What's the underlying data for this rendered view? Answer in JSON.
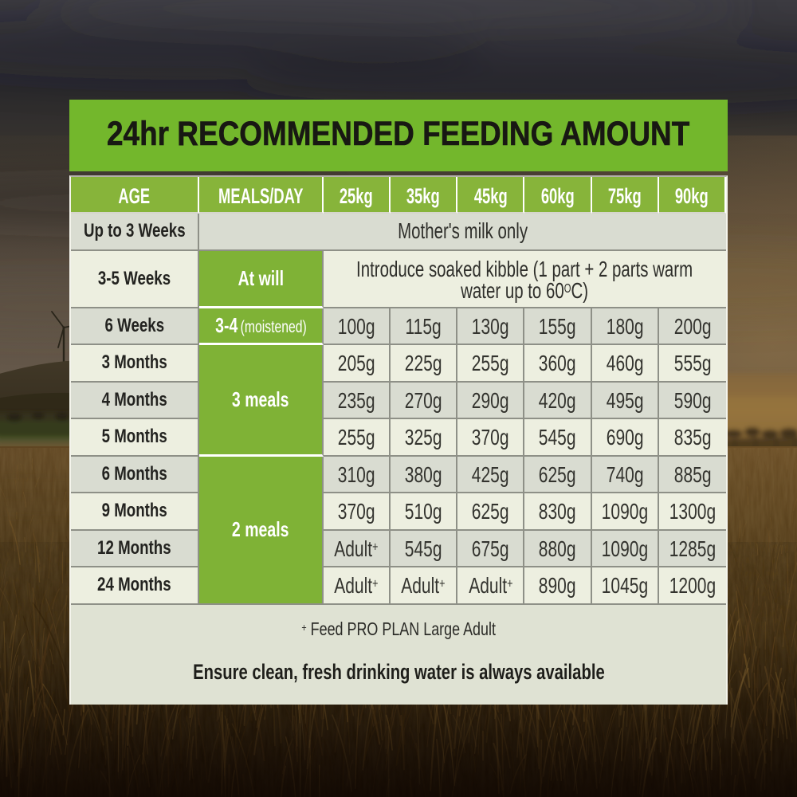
{
  "title": "24hr RECOMMENDED FEEDING AMOUNT",
  "colors": {
    "title_banner_green": "#73b72c",
    "header_green": "#85b23a",
    "meals_cell_green": "#7fb236",
    "row_gray": "#d9dcd1",
    "row_cream": "#edefe0",
    "footer_bg": "#dfe2d3",
    "separator_gray": "#8e9087",
    "text_dark": "#232320"
  },
  "table": {
    "columns": [
      "AGE",
      "MEALS/DAY",
      "25kg",
      "35kg",
      "45kg",
      "60kg",
      "75kg",
      "90kg"
    ],
    "rows": [
      {
        "age": "Up to 3 Weeks",
        "meals": "",
        "note": "Mother's milk only"
      },
      {
        "age": "3-5 Weeks",
        "meals": "At will",
        "note_line1": "Introduce soaked kibble (1 part + 2 parts warm",
        "note_line2_pre": "water up to 60",
        "note_line2_sup": "O",
        "note_line2_post": "C)"
      },
      {
        "age": "6 Weeks",
        "meals": "3-4",
        "meals_small": "(moistened)",
        "values": [
          "100g",
          "115g",
          "130g",
          "155g",
          "180g",
          "200g"
        ]
      },
      {
        "age": "3 Months",
        "values": [
          "205g",
          "225g",
          "255g",
          "360g",
          "460g",
          "555g"
        ]
      },
      {
        "age": "4 Months",
        "values": [
          "235g",
          "270g",
          "290g",
          "420g",
          "495g",
          "590g"
        ]
      },
      {
        "age": "5 Months",
        "values": [
          "255g",
          "325g",
          "370g",
          "545g",
          "690g",
          "835g"
        ]
      },
      {
        "age": "6 Months",
        "values": [
          "310g",
          "380g",
          "425g",
          "625g",
          "740g",
          "885g"
        ]
      },
      {
        "age": "9 Months",
        "values": [
          "370g",
          "510g",
          "625g",
          "830g",
          "1090g",
          "1300g"
        ]
      },
      {
        "age": "12 Months",
        "values": [
          "Adult+",
          "545g",
          "675g",
          "880g",
          "1090g",
          "1285g"
        ]
      },
      {
        "age": "24 Months",
        "values": [
          "Adult+",
          "Adult+",
          "Adult+",
          "890g",
          "1045g",
          "1200g"
        ]
      }
    ],
    "meal_groups": [
      {
        "label": "3 meals",
        "span_rows": "3-5 Months"
      },
      {
        "label": "2 meals",
        "span_rows": "6-24 Months"
      }
    ]
  },
  "chart_data": {
    "type": "table",
    "title": "24hr RECOMMENDED FEEDING AMOUNT",
    "columns": [
      "AGE",
      "MEALS/DAY",
      "25kg",
      "35kg",
      "45kg",
      "60kg",
      "75kg",
      "90kg"
    ],
    "rows": [
      [
        "Up to 3 Weeks",
        "",
        "Mother's milk only",
        "",
        "",
        "",
        "",
        ""
      ],
      [
        "3-5 Weeks",
        "At will",
        "Introduce soaked kibble (1 part + 2 parts warm water up to 60OC)",
        "",
        "",
        "",
        "",
        ""
      ],
      [
        "6 Weeks",
        "3-4 (moistened)",
        "100g",
        "115g",
        "130g",
        "155g",
        "180g",
        "200g"
      ],
      [
        "3 Months",
        "3 meals",
        "205g",
        "225g",
        "255g",
        "360g",
        "460g",
        "555g"
      ],
      [
        "4 Months",
        "3 meals",
        "235g",
        "270g",
        "290g",
        "420g",
        "495g",
        "590g"
      ],
      [
        "5 Months",
        "3 meals",
        "255g",
        "325g",
        "370g",
        "545g",
        "690g",
        "835g"
      ],
      [
        "6 Months",
        "2 meals",
        "310g",
        "380g",
        "425g",
        "625g",
        "740g",
        "885g"
      ],
      [
        "9 Months",
        "2 meals",
        "370g",
        "510g",
        "625g",
        "830g",
        "1090g",
        "1300g"
      ],
      [
        "12 Months",
        "2 meals",
        "Adult+",
        "545g",
        "675g",
        "880g",
        "1090g",
        "1285g"
      ],
      [
        "24 Months",
        "2 meals",
        "Adult+",
        "Adult+",
        "Adult+",
        "890g",
        "1045g",
        "1200g"
      ]
    ],
    "notes": [
      "+ Feed PRO PLAN Large Adult",
      "Ensure clean, fresh drinking water is always available"
    ]
  },
  "footer": {
    "footnote_sup": "+",
    "footnote_text": " Feed PRO PLAN Large Adult",
    "water_note": "Ensure clean, fresh drinking water is always available"
  }
}
